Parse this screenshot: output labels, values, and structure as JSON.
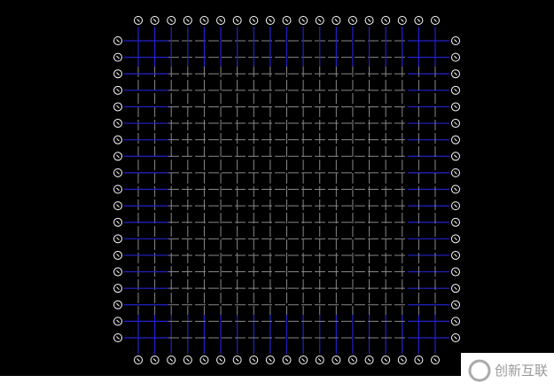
{
  "watermark": {
    "text": "创新互联"
  }
}
